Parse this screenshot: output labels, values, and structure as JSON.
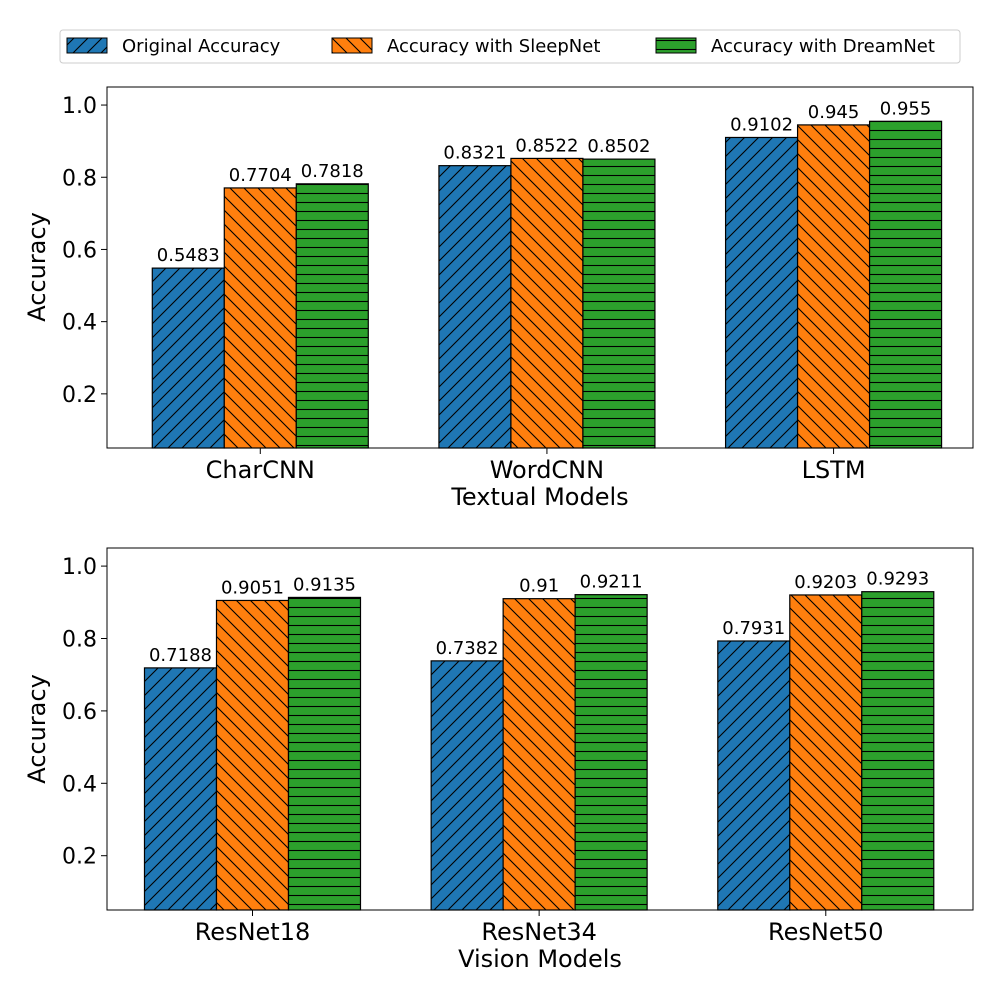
{
  "legend": {
    "items": [
      {
        "label": "Original Accuracy",
        "color": "#1f77b4",
        "hatch": "diagonal-forward"
      },
      {
        "label": "Accuracy with SleepNet",
        "color": "#ff7f0e",
        "hatch": "diagonal-back"
      },
      {
        "label": "Accuracy with DreamNet",
        "color": "#2ca02c",
        "hatch": "horizontal"
      }
    ]
  },
  "chart_data": [
    {
      "type": "bar",
      "categories": [
        "CharCNN",
        "WordCNN",
        "LSTM"
      ],
      "series": [
        {
          "name": "Original Accuracy",
          "values": [
            0.5483,
            0.8321,
            0.9102
          ],
          "labels": [
            "0.5483",
            "0.8321",
            "0.9102"
          ]
        },
        {
          "name": "Accuracy with SleepNet",
          "values": [
            0.7704,
            0.8522,
            0.945
          ],
          "labels": [
            "0.7704",
            "0.8522",
            "0.945"
          ]
        },
        {
          "name": "Accuracy with DreamNet",
          "values": [
            0.7818,
            0.8502,
            0.955
          ],
          "labels": [
            "0.7818",
            "0.8502",
            "0.955"
          ]
        }
      ],
      "xlabel": "Textual Models",
      "ylabel": "Accuracy",
      "ylim": [
        0.05,
        1.05
      ],
      "yticks": [
        0.2,
        0.4,
        0.6,
        0.8,
        1.0
      ],
      "ytick_labels": [
        "0.2",
        "0.4",
        "0.6",
        "0.8",
        "1.0"
      ]
    },
    {
      "type": "bar",
      "categories": [
        "ResNet18",
        "ResNet34",
        "ResNet50"
      ],
      "series": [
        {
          "name": "Original Accuracy",
          "values": [
            0.7188,
            0.7382,
            0.7931
          ],
          "labels": [
            "0.7188",
            "0.7382",
            "0.7931"
          ]
        },
        {
          "name": "Accuracy with SleepNet",
          "values": [
            0.9051,
            0.91,
            0.9203
          ],
          "labels": [
            "0.9051",
            "0.91",
            "0.9203"
          ]
        },
        {
          "name": "Accuracy with DreamNet",
          "values": [
            0.9135,
            0.9211,
            0.9293
          ],
          "labels": [
            "0.9135",
            "0.9211",
            "0.9293"
          ]
        }
      ],
      "xlabel": "Vision Models",
      "ylabel": "Accuracy",
      "ylim": [
        0.05,
        1.05
      ],
      "yticks": [
        0.2,
        0.4,
        0.6,
        0.8,
        1.0
      ],
      "ytick_labels": [
        "0.2",
        "0.4",
        "0.6",
        "0.8",
        "1.0"
      ]
    }
  ]
}
